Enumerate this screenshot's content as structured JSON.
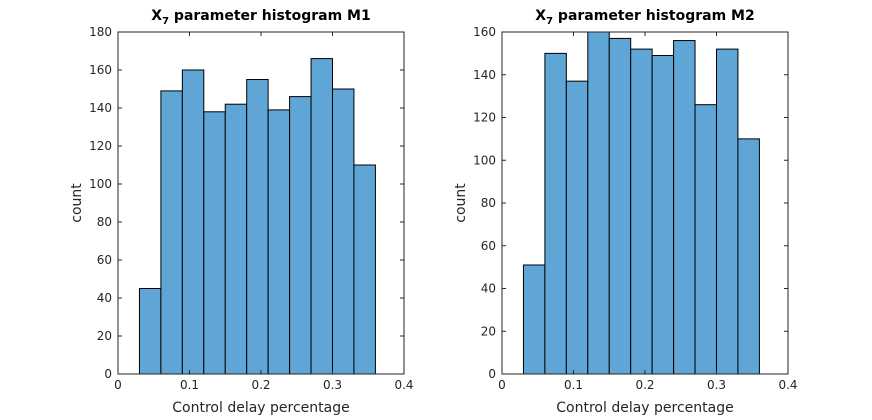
{
  "chart_data": [
    {
      "type": "bar",
      "title_prefix": "X",
      "title_subscript": "7",
      "title_suffix": " parameter histogram M1",
      "xlabel": "Control delay percentage",
      "ylabel": "count",
      "xlim": [
        0,
        0.4
      ],
      "ylim": [
        0,
        180
      ],
      "xticks": [
        0,
        0.1,
        0.2,
        0.3,
        0.4
      ],
      "xtick_labels": [
        "0",
        "0.1",
        "0.2",
        "0.3",
        "0.4"
      ],
      "yticks": [
        0,
        20,
        40,
        60,
        80,
        100,
        120,
        140,
        160,
        180
      ],
      "ytick_labels": [
        "0",
        "20",
        "40",
        "60",
        "80",
        "100",
        "120",
        "140",
        "160",
        "180"
      ],
      "bin_edges": [
        0.03,
        0.06,
        0.09,
        0.12,
        0.15,
        0.18,
        0.21,
        0.24,
        0.27,
        0.3,
        0.33,
        0.36
      ],
      "values": [
        45,
        149,
        160,
        138,
        142,
        155,
        139,
        146,
        166,
        150,
        110
      ],
      "bar_color": "#5fa6d6",
      "grid": false
    },
    {
      "type": "bar",
      "title_prefix": "X",
      "title_subscript": "7",
      "title_suffix": " parameter histogram M2",
      "xlabel": "Control delay percentage",
      "ylabel": "count",
      "xlim": [
        0,
        0.4
      ],
      "ylim": [
        0,
        160
      ],
      "xticks": [
        0,
        0.1,
        0.2,
        0.3,
        0.4
      ],
      "xtick_labels": [
        "0",
        "0.1",
        "0.2",
        "0.3",
        "0.4"
      ],
      "yticks": [
        0,
        20,
        40,
        60,
        80,
        100,
        120,
        140,
        160
      ],
      "ytick_labels": [
        "0",
        "20",
        "40",
        "60",
        "80",
        "100",
        "120",
        "140",
        "160"
      ],
      "bin_edges": [
        0.03,
        0.06,
        0.09,
        0.12,
        0.15,
        0.18,
        0.21,
        0.24,
        0.27,
        0.3,
        0.33,
        0.36
      ],
      "values": [
        51,
        150,
        137,
        160,
        157,
        152,
        149,
        156,
        126,
        152,
        110
      ],
      "bar_color": "#5fa6d6",
      "grid": false
    }
  ]
}
